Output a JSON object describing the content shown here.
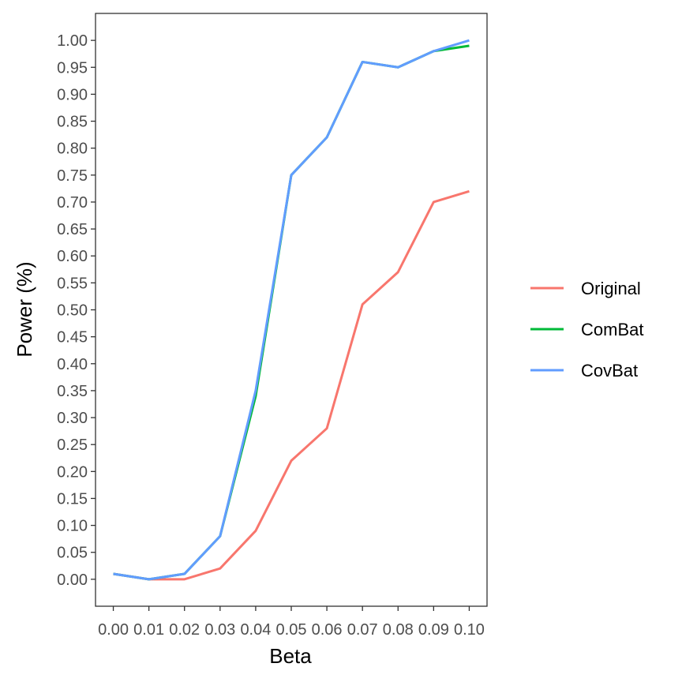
{
  "chart_data": {
    "type": "line",
    "title": "",
    "xlabel": "Beta",
    "ylabel": "Power (%)",
    "x": [
      0.0,
      0.01,
      0.02,
      0.03,
      0.04,
      0.05,
      0.06,
      0.07,
      0.08,
      0.09,
      0.1
    ],
    "x_tick_labels": [
      "0.00",
      "0.01",
      "0.02",
      "0.03",
      "0.04",
      "0.05",
      "0.06",
      "0.07",
      "0.08",
      "0.09",
      "0.10"
    ],
    "y_tick_labels": [
      "0.00",
      "0.05",
      "0.10",
      "0.15",
      "0.20",
      "0.25",
      "0.30",
      "0.35",
      "0.40",
      "0.45",
      "0.50",
      "0.55",
      "0.60",
      "0.65",
      "0.70",
      "0.75",
      "0.80",
      "0.85",
      "0.90",
      "0.95",
      "1.00"
    ],
    "xlim": [
      -0.005,
      0.105
    ],
    "ylim": [
      -0.05,
      1.05
    ],
    "grid": false,
    "legend_position": "right",
    "series": [
      {
        "name": "Original",
        "color": "#F8766D",
        "values": [
          0.01,
          0.0,
          0.0,
          0.02,
          0.09,
          0.22,
          0.28,
          0.51,
          0.57,
          0.7,
          0.72
        ]
      },
      {
        "name": "ComBat",
        "color": "#00BA38",
        "values": [
          0.01,
          0.0,
          0.01,
          0.08,
          0.34,
          0.75,
          0.82,
          0.96,
          0.95,
          0.98,
          0.99
        ]
      },
      {
        "name": "CovBat",
        "color": "#619CFF",
        "values": [
          0.01,
          0.0,
          0.01,
          0.08,
          0.35,
          0.75,
          0.82,
          0.96,
          0.95,
          0.98,
          1.0
        ]
      }
    ]
  }
}
